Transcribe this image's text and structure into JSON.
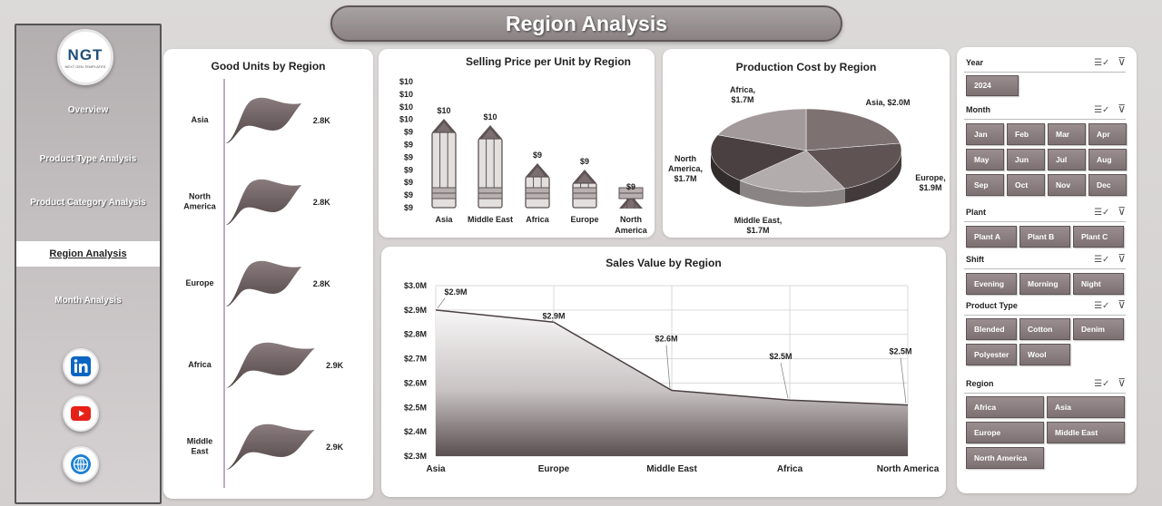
{
  "header": {
    "title": "Region Analysis"
  },
  "logo": {
    "text": "NGT",
    "subtext": "NEXT GEN TEMPLATES"
  },
  "sidebar": {
    "items": [
      {
        "label": "Overview"
      },
      {
        "label": "Product Type Analysis"
      },
      {
        "label": "Product Category Analysis"
      },
      {
        "label": "Region Analysis",
        "active": true
      },
      {
        "label": "Month Analysis"
      }
    ],
    "social": [
      "linkedin-icon",
      "youtube-icon",
      "globe-icon"
    ]
  },
  "colors": {
    "accent": "#7c7072",
    "shape_dark": "#5e5354",
    "shape_light": "#a79e9f",
    "panel_bg": "#ffffff"
  },
  "chart_data": [
    {
      "type": "bar",
      "title": "Good Units by Region",
      "orientation": "horizontal",
      "categories": [
        "Asia",
        "North America",
        "Europe",
        "Africa",
        "Middle East"
      ],
      "values": [
        2.8,
        2.8,
        2.8,
        2.9,
        2.9
      ],
      "data_labels": [
        "2.8K",
        "2.8K",
        "2.8K",
        "2.9K",
        "2.9K"
      ],
      "unit": "K"
    },
    {
      "type": "bar",
      "title": "Selling Price per Unit by Region",
      "categories": [
        "Asia",
        "Middle East",
        "Africa",
        "Europe",
        "North America"
      ],
      "values": [
        10.0,
        9.9,
        9.3,
        9.2,
        8.8
      ],
      "data_labels": [
        "$10",
        "$10",
        "$9",
        "$9",
        "$9"
      ],
      "y_ticks": [
        "$10",
        "$10",
        "$10",
        "$10",
        "$9",
        "$9",
        "$9",
        "$9",
        "$9",
        "$9",
        "$9"
      ]
    },
    {
      "type": "pie",
      "title": "Production Cost by Region",
      "categories": [
        "Asia",
        "Europe",
        "Middle East",
        "North America",
        "Africa"
      ],
      "values": [
        2.0,
        1.9,
        1.7,
        1.7,
        1.7
      ],
      "data_labels": [
        "Asia, $2.0M",
        "Europe, $1.9M",
        "Middle East, $1.7M",
        "North America, $1.7M",
        "Africa, $1.7M"
      ]
    },
    {
      "type": "area",
      "title": "Sales Value by Region",
      "categories": [
        "Asia",
        "Europe",
        "Middle East",
        "Africa",
        "North America"
      ],
      "values": [
        2.9,
        2.85,
        2.57,
        2.53,
        2.51
      ],
      "data_labels": [
        "$2.9M",
        "$2.9M",
        "$2.6M",
        "$2.5M",
        "$2.5M"
      ],
      "y_ticks": [
        "$3.0M",
        "$2.9M",
        "$2.8M",
        "$2.7M",
        "$2.6M",
        "$2.5M",
        "$2.4M",
        "$2.3M"
      ],
      "ylim": [
        2.3,
        3.0
      ]
    }
  ],
  "slicers": {
    "year": {
      "title": "Year",
      "items": [
        "2024"
      ]
    },
    "month": {
      "title": "Month",
      "items": [
        "Jan",
        "Feb",
        "Mar",
        "Apr",
        "May",
        "Jun",
        "Jul",
        "Aug",
        "Sep",
        "Oct",
        "Nov",
        "Dec"
      ]
    },
    "plant": {
      "title": "Plant",
      "items": [
        "Plant A",
        "Plant B",
        "Plant C"
      ]
    },
    "shift": {
      "title": "Shift",
      "items": [
        "Evening",
        "Morning",
        "Night"
      ]
    },
    "product_type": {
      "title": "Product Type",
      "items": [
        "Blended",
        "Cotton",
        "Denim",
        "Polyester",
        "Wool"
      ]
    },
    "region": {
      "title": "Region",
      "items": [
        "Africa",
        "Asia",
        "Europe",
        "Middle East",
        "North America"
      ]
    }
  }
}
